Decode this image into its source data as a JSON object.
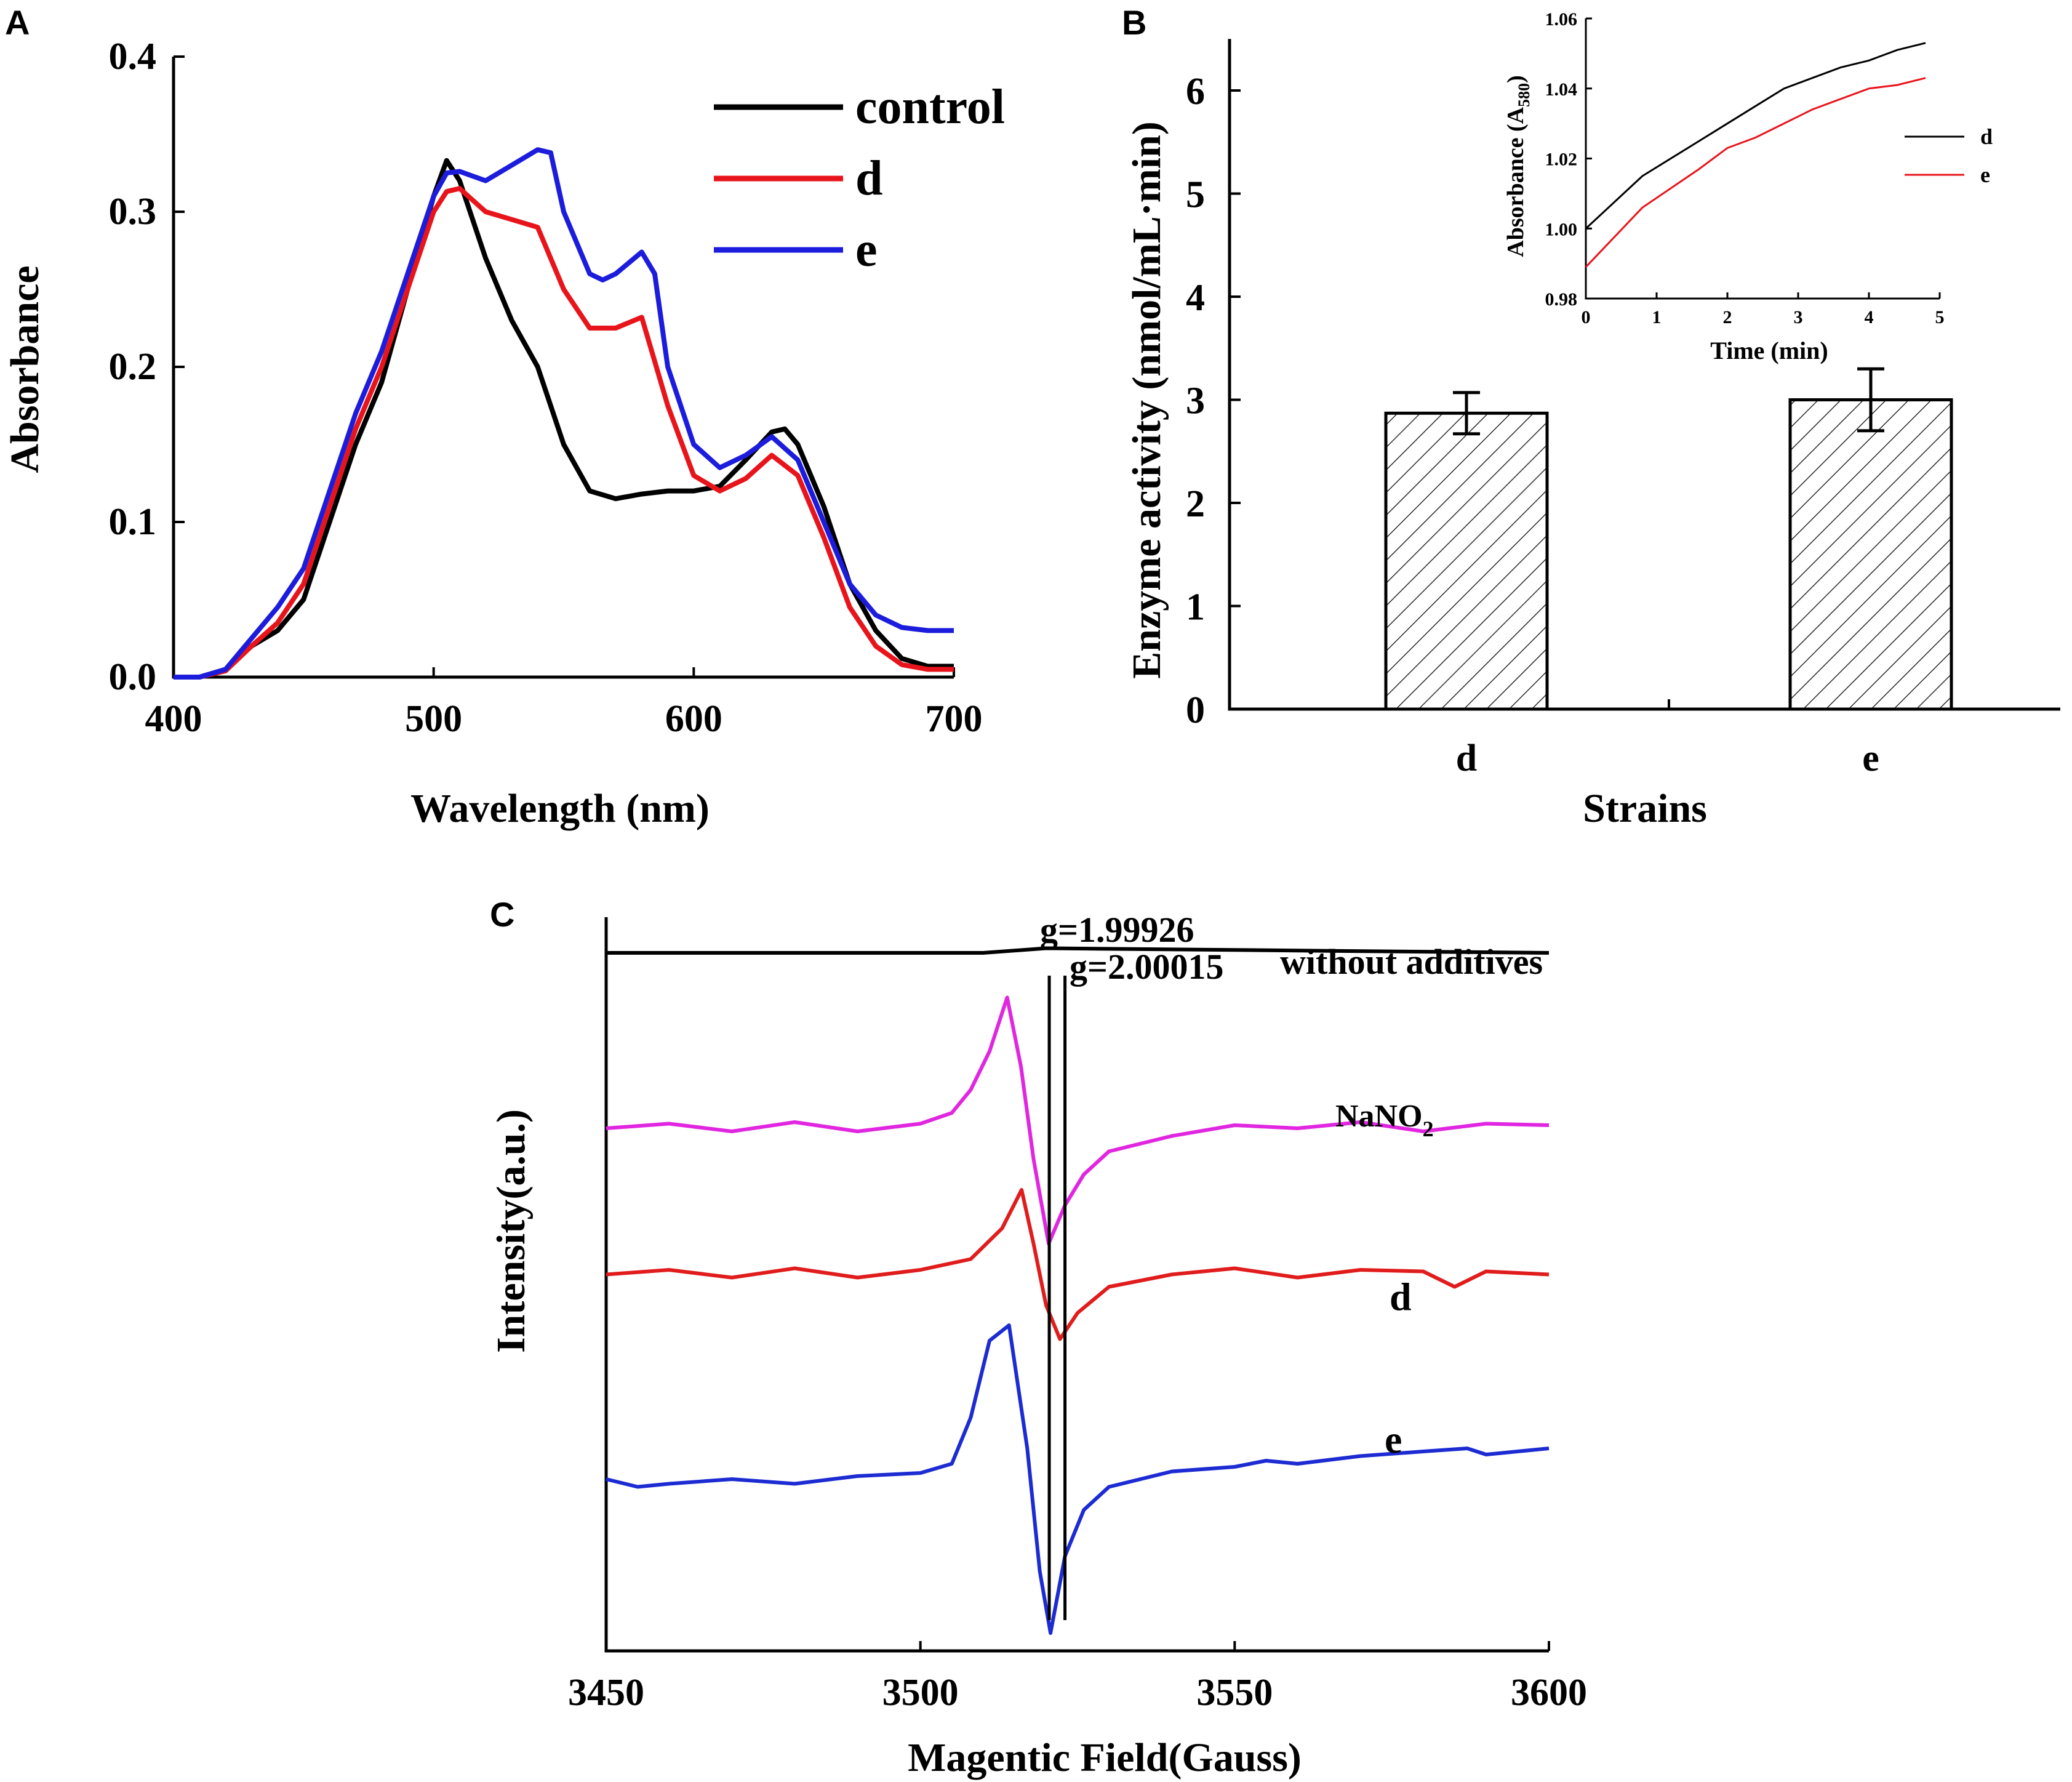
{
  "chart_data": [
    {
      "panel": "A",
      "type": "line",
      "title": "",
      "xlabel": "Wavelength (nm)",
      "ylabel": "Absorbance",
      "xlim": [
        400,
        700
      ],
      "ylim": [
        0.0,
        0.4
      ],
      "xticks": [
        "400",
        "500",
        "600",
        "700"
      ],
      "yticks": [
        "0.0",
        "0.1",
        "0.2",
        "0.3",
        "0.4"
      ],
      "legend_position": "top-right",
      "series": [
        {
          "name": "control",
          "color": "#000000",
          "x": [
            400,
            410,
            420,
            430,
            440,
            450,
            460,
            470,
            480,
            490,
            500,
            505,
            510,
            520,
            530,
            540,
            550,
            560,
            570,
            580,
            590,
            600,
            610,
            620,
            630,
            635,
            640,
            650,
            660,
            670,
            680,
            690,
            700
          ],
          "y": [
            0.0,
            0.0,
            0.005,
            0.02,
            0.03,
            0.05,
            0.1,
            0.15,
            0.19,
            0.25,
            0.31,
            0.333,
            0.32,
            0.27,
            0.23,
            0.2,
            0.15,
            0.12,
            0.115,
            0.118,
            0.12,
            0.12,
            0.123,
            0.14,
            0.158,
            0.16,
            0.15,
            0.11,
            0.06,
            0.03,
            0.012,
            0.007,
            0.007
          ]
        },
        {
          "name": "d",
          "color": "#e8141b",
          "x": [
            400,
            410,
            420,
            430,
            440,
            450,
            460,
            470,
            480,
            490,
            500,
            505,
            510,
            520,
            530,
            540,
            550,
            560,
            570,
            580,
            590,
            600,
            610,
            620,
            630,
            640,
            650,
            660,
            670,
            680,
            690,
            700
          ],
          "y": [
            0.0,
            0.0,
            0.004,
            0.02,
            0.035,
            0.06,
            0.11,
            0.16,
            0.2,
            0.25,
            0.3,
            0.313,
            0.315,
            0.3,
            0.295,
            0.29,
            0.25,
            0.225,
            0.225,
            0.232,
            0.175,
            0.13,
            0.12,
            0.128,
            0.143,
            0.13,
            0.09,
            0.045,
            0.02,
            0.008,
            0.005,
            0.005
          ]
        },
        {
          "name": "e",
          "color": "#1c1cdc",
          "x": [
            400,
            410,
            420,
            430,
            440,
            450,
            460,
            470,
            480,
            490,
            500,
            505,
            510,
            520,
            530,
            540,
            545,
            550,
            560,
            565,
            570,
            580,
            585,
            590,
            600,
            610,
            620,
            630,
            640,
            650,
            660,
            670,
            680,
            690,
            700
          ],
          "y": [
            0.0,
            0.0,
            0.005,
            0.025,
            0.045,
            0.07,
            0.12,
            0.17,
            0.21,
            0.26,
            0.31,
            0.325,
            0.326,
            0.32,
            0.33,
            0.34,
            0.338,
            0.3,
            0.26,
            0.256,
            0.26,
            0.274,
            0.26,
            0.2,
            0.15,
            0.135,
            0.143,
            0.155,
            0.14,
            0.1,
            0.06,
            0.04,
            0.032,
            0.03,
            0.03
          ]
        }
      ]
    },
    {
      "panel": "B",
      "type": "bar",
      "title": "",
      "xlabel": "Strains",
      "ylabel": "Enzyme activity (nmol/mL·min)",
      "categories": [
        "d",
        "e"
      ],
      "values": [
        2.87,
        3.0
      ],
      "errors": [
        0.2,
        0.3
      ],
      "ylim": [
        0,
        6.5
      ],
      "yticks": [
        "0",
        "1",
        "2",
        "3",
        "4",
        "5",
        "6"
      ],
      "inset": {
        "type": "line",
        "xlabel": "Time (min)",
        "ylabel_prefix": "Absorbance (A",
        "ylabel_sub": "580",
        "ylabel_suffix": ")",
        "xlim": [
          0,
          5
        ],
        "ylim": [
          0.98,
          1.06
        ],
        "xticks": [
          "0",
          "1",
          "2",
          "3",
          "4",
          "5"
        ],
        "yticks": [
          "0.98",
          "1.00",
          "1.02",
          "1.04",
          "1.06"
        ],
        "legend_position": "right",
        "series": [
          {
            "name": "d",
            "color": "#000000",
            "x": [
              0,
              0.8,
              1.6,
              2.4,
              2.8,
              3.2,
              3.6,
              4.0,
              4.4,
              4.8
            ],
            "y": [
              1.0,
              1.015,
              1.025,
              1.035,
              1.04,
              1.043,
              1.046,
              1.048,
              1.051,
              1.053
            ]
          },
          {
            "name": "e",
            "color": "#e8141b",
            "x": [
              0,
              0.8,
              1.6,
              2.0,
              2.4,
              2.8,
              3.2,
              3.6,
              4.0,
              4.4,
              4.8
            ],
            "y": [
              0.989,
              1.006,
              1.017,
              1.023,
              1.026,
              1.03,
              1.034,
              1.037,
              1.04,
              1.041,
              1.043
            ]
          }
        ]
      }
    },
    {
      "panel": "C",
      "type": "line",
      "title": "",
      "xlabel": "Magentic Field(Gauss)",
      "ylabel": "Intensity(a.u.)",
      "xlim": [
        3450,
        3600
      ],
      "xticks": [
        "3450",
        "3500",
        "3550",
        "3600"
      ],
      "markers": [
        {
          "label": "g=1.99926",
          "x": 3520.5
        },
        {
          "label": "g=2.00015",
          "x": 3523.0
        }
      ],
      "series": [
        {
          "name": "without additives",
          "color": "#000000",
          "offset": 4.5,
          "x": [
            3450,
            3510,
            3520,
            3600
          ],
          "y": [
            0,
            0,
            0.03,
            0
          ]
        },
        {
          "name": "NaNO2",
          "label_main": "NaNO",
          "label_sub": "2",
          "color": "#e026e0",
          "offset": 3.0,
          "x": [
            3450,
            3460,
            3470,
            3480,
            3490,
            3500,
            3505,
            3508,
            3511,
            3513.8,
            3516,
            3518,
            3520.4,
            3523,
            3526,
            3530,
            3540,
            3550,
            3560,
            3570,
            3580,
            3590,
            3600
          ],
          "y": [
            0,
            0.03,
            -0.02,
            0.04,
            -0.02,
            0.03,
            0.1,
            0.25,
            0.5,
            0.85,
            0.4,
            -0.2,
            -0.75,
            -0.5,
            -0.3,
            -0.15,
            -0.05,
            0.02,
            0.0,
            0.04,
            -0.02,
            0.03,
            0.02
          ]
        },
        {
          "name": "d",
          "color": "#e01c1c",
          "offset": 1.75,
          "x": [
            3450,
            3460,
            3470,
            3480,
            3490,
            3500,
            3508,
            3513,
            3516.1,
            3518,
            3520,
            3522.2,
            3525,
            3530,
            3540,
            3550,
            3560,
            3570,
            3580,
            3585,
            3590,
            3600
          ],
          "y": [
            0,
            0.03,
            -0.02,
            0.04,
            -0.02,
            0.03,
            0.1,
            0.3,
            0.55,
            0.2,
            -0.2,
            -0.42,
            -0.25,
            -0.08,
            0.0,
            0.04,
            -0.02,
            0.03,
            0.02,
            -0.08,
            0.02,
            0.0
          ]
        },
        {
          "name": "e",
          "color": "#1c2bd2",
          "offset": 0.0,
          "x": [
            3450,
            3455,
            3460,
            3470,
            3480,
            3490,
            3500,
            3505,
            3508,
            3511,
            3514.1,
            3517,
            3519,
            3520.7,
            3523,
            3526,
            3530,
            3540,
            3550,
            3555,
            3560,
            3570,
            3580,
            3587,
            3590,
            3600
          ],
          "y": [
            0,
            -0.05,
            -0.03,
            0.0,
            -0.03,
            0.02,
            0.04,
            0.1,
            0.4,
            0.9,
            1.0,
            0.2,
            -0.6,
            -1.0,
            -0.5,
            -0.2,
            -0.05,
            0.05,
            0.08,
            0.12,
            0.1,
            0.15,
            0.18,
            0.2,
            0.16,
            0.2
          ]
        }
      ]
    }
  ]
}
